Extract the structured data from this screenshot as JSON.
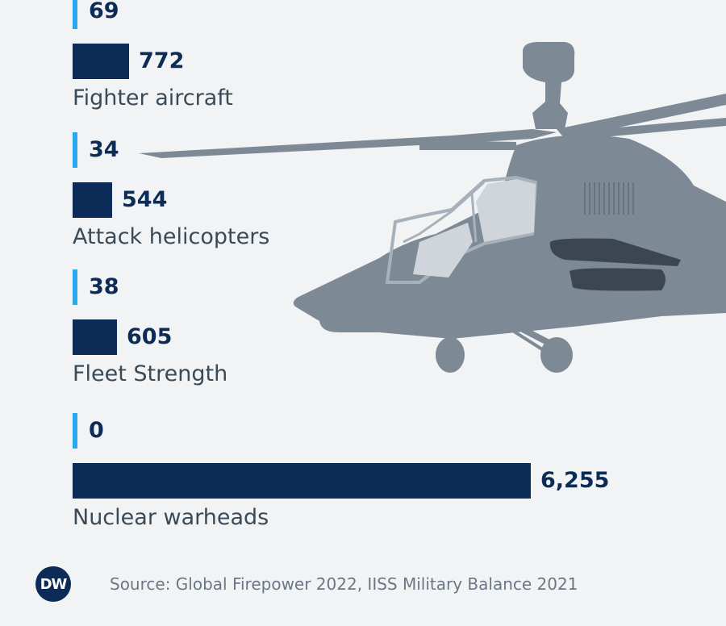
{
  "chart_data": {
    "type": "bar",
    "orientation": "horizontal",
    "categories": [
      "Fighter aircraft",
      "Attack helicopters",
      "Fleet Strength",
      "Nuclear warheads"
    ],
    "series": [
      {
        "color": "#2aa8ee",
        "values": [
          69,
          34,
          38,
          0
        ],
        "labels": [
          "69",
          "34",
          "38",
          "0"
        ]
      },
      {
        "color": "#0c2c57",
        "values": [
          772,
          544,
          605,
          6255
        ],
        "labels": [
          "772",
          "544",
          "605",
          "6,255"
        ]
      }
    ],
    "title": "",
    "xlabel": "",
    "ylabel": "",
    "grid": false,
    "legend": "none"
  },
  "footer": {
    "logo_text": "DW",
    "source": "Source: Global Firepower 2022, IISS Military Balance 2021"
  },
  "decoration": {
    "icon": "attack-helicopter-icon"
  }
}
